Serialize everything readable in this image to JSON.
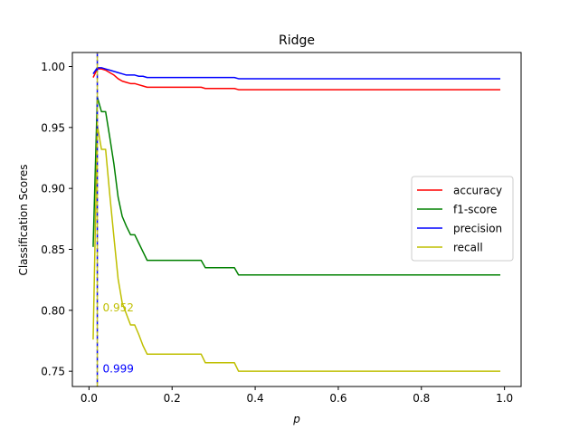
{
  "chart_data": {
    "type": "line",
    "title": "Ridge",
    "xlabel": "p",
    "ylabel": "Classification Scores",
    "xlim": [
      -0.04,
      1.04
    ],
    "ylim": [
      0.7375,
      1.0115
    ],
    "xticks": [
      0.0,
      0.2,
      0.4,
      0.6,
      0.8,
      1.0
    ],
    "xtick_labels": [
      "0.0",
      "0.2",
      "0.4",
      "0.6",
      "0.8",
      "1.0"
    ],
    "yticks": [
      0.75,
      0.8,
      0.85,
      0.9,
      0.95,
      1.0
    ],
    "ytick_labels": [
      "0.75",
      "0.80",
      "0.85",
      "0.90",
      "0.95",
      "1.00"
    ],
    "grid": false,
    "legend_position": "center-right",
    "series": [
      {
        "name": "accuracy",
        "color": "#ff0000",
        "x": [
          0.01,
          0.02,
          0.03,
          0.04,
          0.05,
          0.06,
          0.07,
          0.08,
          0.09,
          0.1,
          0.11,
          0.12,
          0.13,
          0.14,
          0.27,
          0.28,
          0.35,
          0.36,
          0.99
        ],
        "y": [
          0.991,
          0.998,
          0.998,
          0.997,
          0.995,
          0.993,
          0.99,
          0.988,
          0.987,
          0.986,
          0.986,
          0.985,
          0.984,
          0.983,
          0.983,
          0.982,
          0.982,
          0.981,
          0.981
        ]
      },
      {
        "name": "f1-score",
        "color": "#008000",
        "x": [
          0.01,
          0.02,
          0.03,
          0.04,
          0.05,
          0.06,
          0.07,
          0.08,
          0.09,
          0.1,
          0.11,
          0.12,
          0.13,
          0.14,
          0.27,
          0.28,
          0.35,
          0.36,
          0.99
        ],
        "y": [
          0.852,
          0.975,
          0.963,
          0.963,
          0.942,
          0.92,
          0.893,
          0.877,
          0.869,
          0.862,
          0.862,
          0.855,
          0.848,
          0.841,
          0.841,
          0.835,
          0.835,
          0.829,
          0.829
        ]
      },
      {
        "name": "precision",
        "color": "#0000ff",
        "x": [
          0.01,
          0.02,
          0.03,
          0.04,
          0.05,
          0.06,
          0.07,
          0.08,
          0.09,
          0.1,
          0.11,
          0.12,
          0.13,
          0.14,
          0.27,
          0.28,
          0.35,
          0.36,
          0.99
        ],
        "y": [
          0.994,
          0.999,
          0.999,
          0.998,
          0.997,
          0.996,
          0.995,
          0.994,
          0.993,
          0.993,
          0.993,
          0.992,
          0.992,
          0.991,
          0.991,
          0.991,
          0.991,
          0.99,
          0.99
        ]
      },
      {
        "name": "recall",
        "color": "#bfbf00",
        "x": [
          0.01,
          0.02,
          0.03,
          0.04,
          0.05,
          0.06,
          0.07,
          0.08,
          0.09,
          0.1,
          0.11,
          0.12,
          0.13,
          0.14,
          0.27,
          0.28,
          0.35,
          0.36,
          0.99
        ],
        "y": [
          0.776,
          0.952,
          0.932,
          0.932,
          0.895,
          0.86,
          0.826,
          0.806,
          0.797,
          0.788,
          0.788,
          0.78,
          0.771,
          0.764,
          0.764,
          0.757,
          0.757,
          0.75,
          0.75
        ]
      }
    ],
    "vlines": [
      {
        "x": 0.02,
        "color": "#0000ff",
        "style": "dashed"
      },
      {
        "x": 0.02,
        "color": "#bfbf00",
        "style": "dashed"
      }
    ],
    "annotations": [
      {
        "text": "0.952",
        "x": 0.033,
        "y": 0.8025,
        "color": "#bfbf00"
      },
      {
        "text": "0.999",
        "x": 0.033,
        "y": 0.7525,
        "color": "#0000ff"
      }
    ]
  }
}
